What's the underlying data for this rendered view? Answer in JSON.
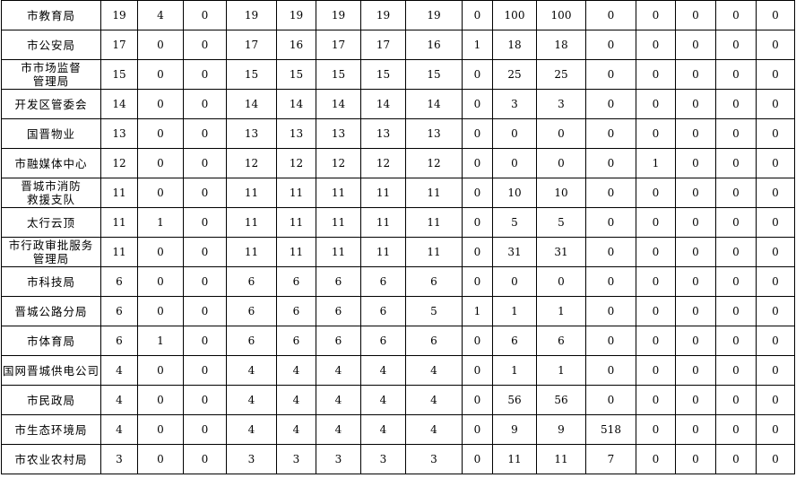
{
  "table": {
    "rows": [
      {
        "name": "市教育局",
        "values": [
          "19",
          "4",
          "0",
          "19",
          "19",
          "19",
          "19",
          "19",
          "0",
          "100",
          "100",
          "0",
          "0",
          "0",
          "0",
          "0"
        ]
      },
      {
        "name": "市公安局",
        "values": [
          "17",
          "0",
          "0",
          "17",
          "16",
          "17",
          "17",
          "16",
          "1",
          "18",
          "18",
          "0",
          "0",
          "0",
          "0",
          "0"
        ]
      },
      {
        "name": "市市场监督\n管理局",
        "values": [
          "15",
          "0",
          "0",
          "15",
          "15",
          "15",
          "15",
          "15",
          "0",
          "25",
          "25",
          "0",
          "0",
          "0",
          "0",
          "0"
        ]
      },
      {
        "name": "开发区管委会",
        "values": [
          "14",
          "0",
          "0",
          "14",
          "14",
          "14",
          "14",
          "14",
          "0",
          "3",
          "3",
          "0",
          "0",
          "0",
          "0",
          "0"
        ]
      },
      {
        "name": "国晋物业",
        "values": [
          "13",
          "0",
          "0",
          "13",
          "13",
          "13",
          "13",
          "13",
          "0",
          "0",
          "0",
          "0",
          "0",
          "0",
          "0",
          "0"
        ]
      },
      {
        "name": "市融媒体中心",
        "values": [
          "12",
          "0",
          "0",
          "12",
          "12",
          "12",
          "12",
          "12",
          "0",
          "0",
          "0",
          "0",
          "1",
          "0",
          "0",
          "0"
        ]
      },
      {
        "name": "晋城市消防\n救援支队",
        "values": [
          "11",
          "0",
          "0",
          "11",
          "11",
          "11",
          "11",
          "11",
          "0",
          "10",
          "10",
          "0",
          "0",
          "0",
          "0",
          "0"
        ]
      },
      {
        "name": "太行云顶",
        "values": [
          "11",
          "1",
          "0",
          "11",
          "11",
          "11",
          "11",
          "11",
          "0",
          "5",
          "5",
          "0",
          "0",
          "0",
          "0",
          "0"
        ]
      },
      {
        "name": "市行政审批服务\n管理局",
        "values": [
          "11",
          "0",
          "0",
          "11",
          "11",
          "11",
          "11",
          "11",
          "0",
          "31",
          "31",
          "0",
          "0",
          "0",
          "0",
          "0"
        ]
      },
      {
        "name": "市科技局",
        "values": [
          "6",
          "0",
          "0",
          "6",
          "6",
          "6",
          "6",
          "6",
          "0",
          "0",
          "0",
          "0",
          "0",
          "0",
          "0",
          "0"
        ]
      },
      {
        "name": "晋城公路分局",
        "values": [
          "6",
          "0",
          "0",
          "6",
          "6",
          "6",
          "6",
          "5",
          "1",
          "1",
          "1",
          "0",
          "0",
          "0",
          "0",
          "0"
        ]
      },
      {
        "name": "市体育局",
        "values": [
          "6",
          "1",
          "0",
          "6",
          "6",
          "6",
          "6",
          "6",
          "0",
          "6",
          "6",
          "0",
          "0",
          "0",
          "0",
          "0"
        ]
      },
      {
        "name": "国网晋城供电公司",
        "values": [
          "4",
          "0",
          "0",
          "4",
          "4",
          "4",
          "4",
          "4",
          "0",
          "1",
          "1",
          "0",
          "0",
          "0",
          "0",
          "0"
        ]
      },
      {
        "name": "市民政局",
        "values": [
          "4",
          "0",
          "0",
          "4",
          "4",
          "4",
          "4",
          "4",
          "0",
          "56",
          "56",
          "0",
          "0",
          "0",
          "0",
          "0"
        ]
      },
      {
        "name": "市生态环境局",
        "values": [
          "4",
          "0",
          "0",
          "4",
          "4",
          "4",
          "4",
          "4",
          "0",
          "9",
          "9",
          "518",
          "0",
          "0",
          "0",
          "0"
        ]
      },
      {
        "name": "市农业农村局",
        "values": [
          "3",
          "0",
          "0",
          "3",
          "3",
          "3",
          "3",
          "3",
          "0",
          "11",
          "11",
          "7",
          "0",
          "0",
          "0",
          "0"
        ]
      }
    ]
  }
}
